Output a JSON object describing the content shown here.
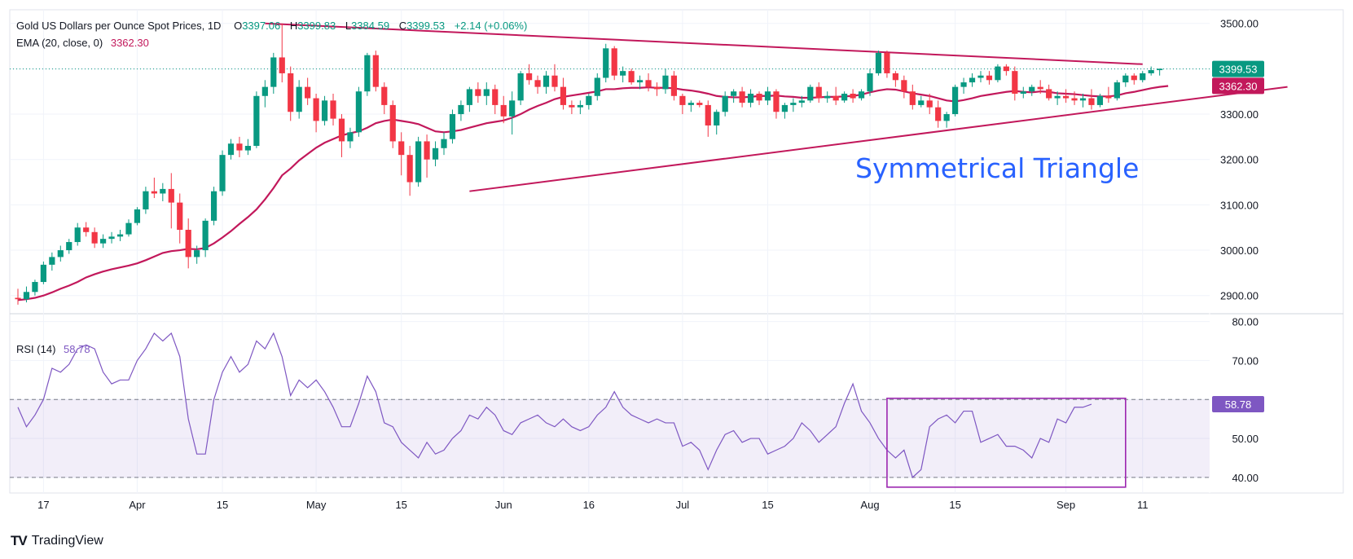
{
  "chart_data": [
    {
      "type": "candlestick",
      "title": "Gold US Dollars per Ounce Spot Prices, 1D",
      "ohlc_header": {
        "open_label": "O",
        "open": "3397.06",
        "high_label": "H",
        "high": "3399.83",
        "low_label": "L",
        "low": "3384.59",
        "close_label": "C",
        "close": "3399.53",
        "change": "+2.14 (+0.06%)"
      },
      "ema_header": {
        "label": "EMA (20, close, 0)",
        "value": "3362.30"
      },
      "y_ticks": [
        "3500.00",
        "3400.00",
        "3300.00",
        "3200.00",
        "3100.00",
        "3000.00",
        "2900.00"
      ],
      "ylim": [
        2860,
        3530
      ],
      "last_price_label": "3399.53",
      "ema_price_label": "3362.30",
      "annotation": "Symmetrical Triangle",
      "trendlines": {
        "upper": {
          "from": [
            29,
            3500
          ],
          "to": [
            132,
            3410
          ]
        },
        "lower": {
          "from": [
            53,
            3130
          ],
          "to": [
            149,
            3360
          ]
        }
      },
      "x_ticks": [
        {
          "label": "17",
          "i": 3
        },
        {
          "label": "Apr",
          "i": 14
        },
        {
          "label": "15",
          "i": 24
        },
        {
          "label": "May",
          "i": 35
        },
        {
          "label": "15",
          "i": 45
        },
        {
          "label": "Jun",
          "i": 57
        },
        {
          "label": "16",
          "i": 67
        },
        {
          "label": "Jul",
          "i": 78
        },
        {
          "label": "15",
          "i": 88
        },
        {
          "label": "Aug",
          "i": 100
        },
        {
          "label": "15",
          "i": 110
        },
        {
          "label": "Sep",
          "i": 123
        },
        {
          "label": "11",
          "i": 132
        }
      ],
      "colors": {
        "up": "#089981",
        "down": "#f23645",
        "ema": "#c2185b",
        "trend": "#c2185b",
        "annotation": "#2962ff",
        "last": "#089981"
      },
      "candles": [
        [
          2895,
          2915,
          2880,
          2892
        ],
        [
          2892,
          2920,
          2885,
          2908
        ],
        [
          2908,
          2935,
          2900,
          2930
        ],
        [
          2930,
          2975,
          2925,
          2968
        ],
        [
          2968,
          2995,
          2955,
          2985
        ],
        [
          2985,
          3010,
          2975,
          3000
        ],
        [
          3000,
          3025,
          2992,
          3018
        ],
        [
          3018,
          3060,
          3010,
          3050
        ],
        [
          3050,
          3062,
          3030,
          3040
        ],
        [
          3040,
          3050,
          3005,
          3015
        ],
        [
          3015,
          3035,
          3005,
          3025
        ],
        [
          3025,
          3040,
          3015,
          3030
        ],
        [
          3030,
          3045,
          3020,
          3035
        ],
        [
          3035,
          3068,
          3030,
          3060
        ],
        [
          3060,
          3095,
          3055,
          3090
        ],
        [
          3090,
          3140,
          3080,
          3130
        ],
        [
          3130,
          3160,
          3115,
          3125
        ],
        [
          3125,
          3148,
          3108,
          3135
        ],
        [
          3135,
          3170,
          3048,
          3105
        ],
        [
          3105,
          3125,
          3015,
          3045
        ],
        [
          3045,
          3070,
          2960,
          2985
        ],
        [
          2985,
          3010,
          2970,
          3000
        ],
        [
          3000,
          3070,
          2985,
          3065
        ],
        [
          3065,
          3140,
          3055,
          3130
        ],
        [
          3130,
          3220,
          3120,
          3210
        ],
        [
          3210,
          3245,
          3200,
          3235
        ],
        [
          3235,
          3250,
          3205,
          3220
        ],
        [
          3220,
          3245,
          3210,
          3230
        ],
        [
          3230,
          3350,
          3225,
          3340
        ],
        [
          3340,
          3375,
          3315,
          3360
        ],
        [
          3360,
          3435,
          3345,
          3425
        ],
        [
          3425,
          3500,
          3370,
          3390
        ],
        [
          3390,
          3405,
          3285,
          3305
        ],
        [
          3305,
          3375,
          3290,
          3360
        ],
        [
          3360,
          3380,
          3320,
          3335
        ],
        [
          3335,
          3345,
          3260,
          3285
        ],
        [
          3285,
          3340,
          3275,
          3330
        ],
        [
          3330,
          3345,
          3275,
          3290
        ],
        [
          3290,
          3300,
          3205,
          3240
        ],
        [
          3240,
          3270,
          3225,
          3260
        ],
        [
          3260,
          3360,
          3250,
          3350
        ],
        [
          3350,
          3435,
          3340,
          3430
        ],
        [
          3430,
          3440,
          3350,
          3360
        ],
        [
          3360,
          3370,
          3300,
          3320
        ],
        [
          3320,
          3330,
          3225,
          3240
        ],
        [
          3240,
          3260,
          3165,
          3210
        ],
        [
          3210,
          3230,
          3120,
          3150
        ],
        [
          3150,
          3250,
          3140,
          3240
        ],
        [
          3240,
          3255,
          3160,
          3200
        ],
        [
          3200,
          3240,
          3185,
          3225
        ],
        [
          3225,
          3260,
          3210,
          3245
        ],
        [
          3245,
          3310,
          3235,
          3300
        ],
        [
          3300,
          3330,
          3285,
          3320
        ],
        [
          3320,
          3360,
          3305,
          3355
        ],
        [
          3355,
          3370,
          3325,
          3340
        ],
        [
          3340,
          3370,
          3320,
          3355
        ],
        [
          3355,
          3365,
          3300,
          3320
        ],
        [
          3320,
          3340,
          3280,
          3295
        ],
        [
          3295,
          3350,
          3255,
          3330
        ],
        [
          3330,
          3395,
          3320,
          3390
        ],
        [
          3390,
          3410,
          3365,
          3375
        ],
        [
          3375,
          3385,
          3345,
          3360
        ],
        [
          3360,
          3395,
          3345,
          3385
        ],
        [
          3385,
          3410,
          3350,
          3360
        ],
        [
          3360,
          3380,
          3310,
          3320
        ],
        [
          3320,
          3330,
          3300,
          3315
        ],
        [
          3315,
          3330,
          3300,
          3320
        ],
        [
          3320,
          3345,
          3310,
          3340
        ],
        [
          3340,
          3390,
          3330,
          3380
        ],
        [
          3380,
          3455,
          3370,
          3445
        ],
        [
          3445,
          3450,
          3375,
          3385
        ],
        [
          3385,
          3405,
          3370,
          3395
        ],
        [
          3395,
          3400,
          3365,
          3370
        ],
        [
          3370,
          3385,
          3355,
          3375
        ],
        [
          3375,
          3390,
          3350,
          3360
        ],
        [
          3360,
          3370,
          3340,
          3355
        ],
        [
          3355,
          3400,
          3345,
          3385
        ],
        [
          3385,
          3395,
          3330,
          3340
        ],
        [
          3340,
          3345,
          3300,
          3320
        ],
        [
          3320,
          3330,
          3305,
          3325
        ],
        [
          3325,
          3330,
          3315,
          3320
        ],
        [
          3320,
          3330,
          3250,
          3275
        ],
        [
          3275,
          3310,
          3255,
          3305
        ],
        [
          3305,
          3350,
          3295,
          3340
        ],
        [
          3340,
          3355,
          3325,
          3350
        ],
        [
          3350,
          3360,
          3315,
          3325
        ],
        [
          3325,
          3355,
          3315,
          3345
        ],
        [
          3345,
          3350,
          3320,
          3330
        ],
        [
          3330,
          3360,
          3320,
          3350
        ],
        [
          3350,
          3355,
          3290,
          3305
        ],
        [
          3305,
          3325,
          3290,
          3320
        ],
        [
          3320,
          3335,
          3305,
          3325
        ],
        [
          3325,
          3340,
          3315,
          3330
        ],
        [
          3330,
          3365,
          3325,
          3360
        ],
        [
          3360,
          3370,
          3325,
          3335
        ],
        [
          3335,
          3350,
          3325,
          3340
        ],
        [
          3340,
          3360,
          3320,
          3330
        ],
        [
          3330,
          3350,
          3325,
          3345
        ],
        [
          3345,
          3355,
          3325,
          3335
        ],
        [
          3335,
          3355,
          3330,
          3350
        ],
        [
          3350,
          3400,
          3340,
          3390
        ],
        [
          3390,
          3440,
          3385,
          3435
        ],
        [
          3435,
          3440,
          3380,
          3390
        ],
        [
          3390,
          3395,
          3360,
          3375
        ],
        [
          3375,
          3385,
          3335,
          3350
        ],
        [
          3350,
          3365,
          3310,
          3320
        ],
        [
          3320,
          3340,
          3315,
          3330
        ],
        [
          3330,
          3345,
          3300,
          3315
        ],
        [
          3315,
          3330,
          3270,
          3285
        ],
        [
          3285,
          3305,
          3270,
          3300
        ],
        [
          3300,
          3365,
          3295,
          3360
        ],
        [
          3360,
          3380,
          3345,
          3370
        ],
        [
          3370,
          3390,
          3360,
          3380
        ],
        [
          3380,
          3395,
          3370,
          3385
        ],
        [
          3385,
          3395,
          3365,
          3375
        ],
        [
          3375,
          3410,
          3370,
          3405
        ],
        [
          3405,
          3410,
          3385,
          3395
        ],
        [
          3395,
          3405,
          3330,
          3345
        ],
        [
          3345,
          3360,
          3335,
          3350
        ],
        [
          3350,
          3365,
          3340,
          3360
        ],
        [
          3360,
          3375,
          3345,
          3355
        ],
        [
          3355,
          3365,
          3330,
          3335
        ],
        [
          3335,
          3350,
          3320,
          3340
        ],
        [
          3340,
          3355,
          3325,
          3335
        ],
        [
          3335,
          3350,
          3320,
          3330
        ],
        [
          3330,
          3345,
          3315,
          3335
        ],
        [
          3335,
          3355,
          3310,
          3320
        ],
        [
          3320,
          3345,
          3315,
          3340
        ],
        [
          3340,
          3360,
          3325,
          3335
        ],
        [
          3335,
          3375,
          3330,
          3370
        ],
        [
          3370,
          3390,
          3360,
          3385
        ],
        [
          3385,
          3390,
          3365,
          3375
        ],
        [
          3375,
          3395,
          3370,
          3390
        ],
        [
          3390,
          3405,
          3385,
          3397
        ],
        [
          3397,
          3400,
          3385,
          3400
        ]
      ],
      "ema": [
        2890,
        2892,
        2895,
        2900,
        2907,
        2915,
        2922,
        2930,
        2940,
        2947,
        2953,
        2958,
        2962,
        2966,
        2971,
        2978,
        2986,
        2994,
        2998,
        3000,
        3003,
        3002,
        3005,
        3015,
        3028,
        3042,
        3058,
        3073,
        3090,
        3112,
        3137,
        3165,
        3180,
        3198,
        3212,
        3226,
        3237,
        3245,
        3253,
        3258,
        3262,
        3270,
        3280,
        3285,
        3288,
        3285,
        3282,
        3278,
        3270,
        3262,
        3260,
        3262,
        3265,
        3270,
        3275,
        3280,
        3283,
        3286,
        3292,
        3300,
        3310,
        3318,
        3325,
        3333,
        3338,
        3341,
        3344,
        3347,
        3350,
        3355,
        3355,
        3357,
        3358,
        3358,
        3359,
        3358,
        3358,
        3357,
        3354,
        3352,
        3349,
        3345,
        3340,
        3338,
        3337,
        3337,
        3338,
        3340,
        3340,
        3341,
        3339,
        3338,
        3336,
        3336,
        3337,
        3338,
        3338,
        3339,
        3340,
        3343,
        3348,
        3352,
        3355,
        3354,
        3350,
        3346,
        3343,
        3340,
        3335,
        3330,
        3328,
        3331,
        3335,
        3340,
        3343,
        3346,
        3349,
        3351,
        3349,
        3348,
        3350,
        3349,
        3346,
        3345,
        3344,
        3342,
        3340,
        3339,
        3339,
        3341,
        3346,
        3349,
        3353,
        3357,
        3360,
        3362
      ]
    },
    {
      "type": "line",
      "title": "RSI (14)",
      "value_label": "58.78",
      "y_ticks": [
        "80.00",
        "70.00",
        "60.00",
        "50.00",
        "40.00"
      ],
      "ylim": [
        36,
        82
      ],
      "band": [
        40,
        60
      ],
      "highlight_box": {
        "x_from": 102,
        "x_to": 130,
        "y_from": 37.5,
        "y_to": 60.3
      },
      "colors": {
        "line": "#7e57c2",
        "band": "rgba(126,87,194,0.1)",
        "label_bg": "#7e57c2",
        "box": "#9c27b0"
      },
      "values": [
        58,
        53,
        56,
        60,
        68,
        67,
        69,
        73,
        74,
        73,
        67,
        64,
        65,
        65,
        70,
        73,
        77,
        75,
        77,
        71,
        55,
        46,
        46,
        60,
        67,
        71,
        67,
        69,
        75,
        73,
        77,
        71,
        61,
        65,
        63,
        65,
        62,
        58,
        53,
        53,
        59,
        66,
        62,
        54,
        53,
        49,
        47,
        45,
        49,
        46,
        47,
        50,
        52,
        56,
        55,
        58,
        56,
        52,
        51,
        54,
        55,
        56,
        54,
        53,
        55,
        53,
        52,
        53,
        56,
        58,
        62,
        58,
        56,
        55,
        54,
        55,
        54,
        54,
        48,
        49,
        47,
        42,
        47,
        51,
        52,
        49,
        50,
        50,
        46,
        47,
        48,
        50,
        54,
        52,
        49,
        51,
        53,
        59,
        64,
        57,
        54,
        50,
        47,
        45,
        47,
        40,
        42,
        53,
        55,
        56,
        54,
        57,
        57,
        49,
        50,
        51,
        48,
        48,
        47,
        45,
        50,
        49,
        55,
        54,
        58,
        58,
        58.78
      ]
    }
  ],
  "branding": {
    "logo": "TV",
    "name": "TradingView"
  }
}
